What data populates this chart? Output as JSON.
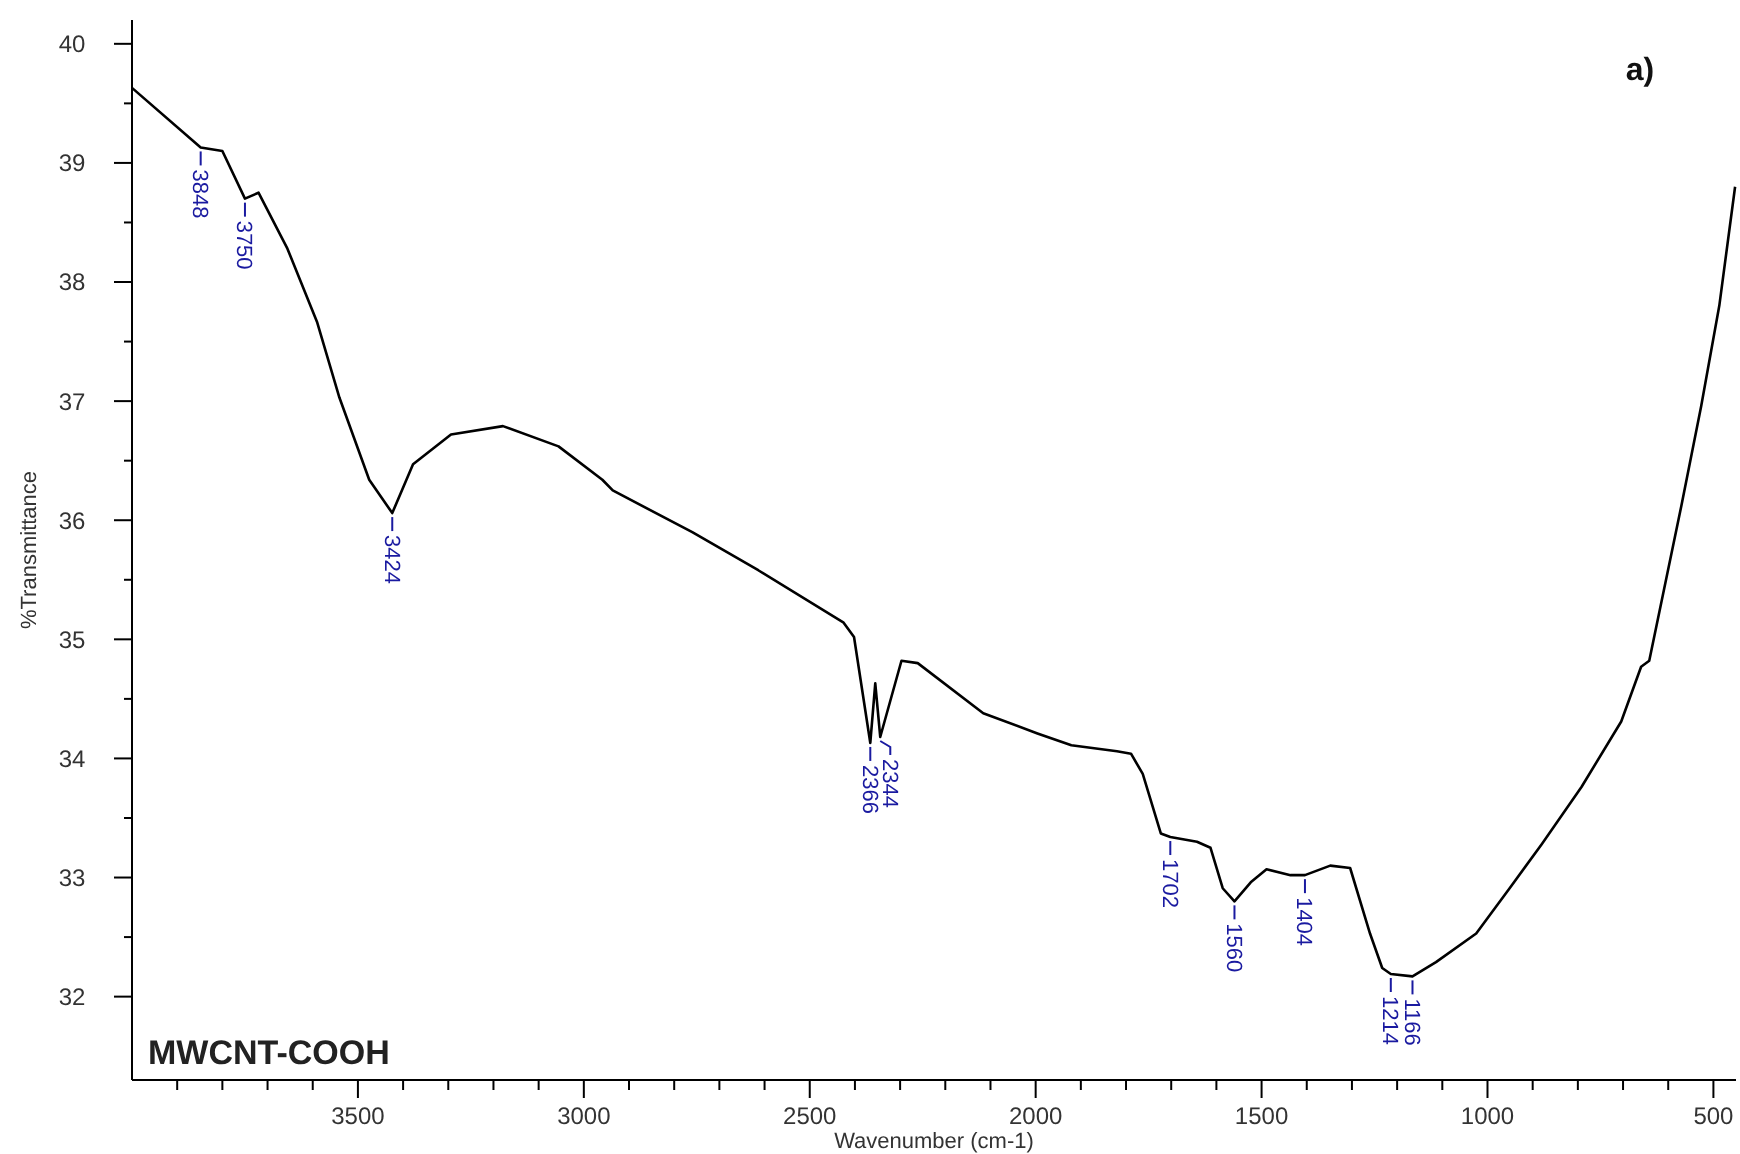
{
  "chart_data": {
    "type": "line",
    "title": "a)",
    "xlabel": "Wavenumber (cm-1)",
    "ylabel": "%Transmittance",
    "xlim": [
      4000,
      450
    ],
    "ylim": [
      31.3,
      40.2
    ],
    "xticks": [
      {
        "value": 3900,
        "label": null
      },
      {
        "value": 3800,
        "label": null
      },
      {
        "value": 3700,
        "label": null
      },
      {
        "value": 3600,
        "label": null
      },
      3500,
      {
        "value": 3400,
        "label": null
      },
      {
        "value": 3300,
        "label": null
      },
      {
        "value": 3200,
        "label": null
      },
      {
        "value": 3100,
        "label": null
      },
      3000,
      {
        "value": 2900,
        "label": null
      },
      {
        "value": 2800,
        "label": null
      },
      {
        "value": 2700,
        "label": null
      },
      {
        "value": 2600,
        "label": null
      },
      2500,
      {
        "value": 2400,
        "label": null
      },
      {
        "value": 2300,
        "label": null
      },
      {
        "value": 2200,
        "label": null
      },
      {
        "value": 2100,
        "label": null
      },
      2000,
      {
        "value": 1900,
        "label": null
      },
      {
        "value": 1800,
        "label": null
      },
      {
        "value": 1700,
        "label": null
      },
      {
        "value": 1600,
        "label": null
      },
      1500,
      {
        "value": 1400,
        "label": null
      },
      {
        "value": 1300,
        "label": null
      },
      {
        "value": 1200,
        "label": null
      },
      {
        "value": 1100,
        "label": null
      },
      1000,
      {
        "value": 900,
        "label": null
      },
      {
        "value": 800,
        "label": null
      },
      {
        "value": 700,
        "label": null
      },
      {
        "value": 600,
        "label": null
      },
      500
    ],
    "yticks": [
      32,
      {
        "value": 32.5,
        "label": null
      },
      33,
      {
        "value": 33.5,
        "label": null
      },
      34,
      {
        "value": 34.5,
        "label": null
      },
      35,
      {
        "value": 35.5,
        "label": null
      },
      36,
      {
        "value": 36.5,
        "label": null
      },
      37,
      {
        "value": 37.5,
        "label": null
      },
      38,
      {
        "value": 38.5,
        "label": null
      },
      39,
      {
        "value": 39.5,
        "label": null
      },
      40
    ],
    "grid": false,
    "marker": "none",
    "line_style": "solid",
    "series": [
      {
        "color": "#000000",
        "x": [
          4000,
          3848,
          3800,
          3750,
          3720,
          3656,
          3590,
          3541,
          3475,
          3424,
          3378,
          3294,
          3179,
          3056,
          2959,
          2936,
          2760,
          2614,
          2425,
          2402,
          2366,
          2355,
          2344,
          2297,
          2261,
          2116,
          1996,
          1921,
          1820,
          1789,
          1763,
          1723,
          1702,
          1643,
          1613,
          1586,
          1560,
          1524,
          1489,
          1436,
          1404,
          1348,
          1304,
          1260,
          1233,
          1214,
          1166,
          1114,
          1025,
          951,
          880,
          792,
          704,
          660,
          642,
          571,
          527,
          487,
          452
        ],
        "values": [
          39.63,
          39.13,
          39.1,
          38.7,
          38.75,
          38.28,
          37.66,
          37.03,
          36.34,
          36.06,
          36.47,
          36.72,
          36.79,
          36.62,
          36.34,
          36.25,
          35.9,
          35.58,
          35.14,
          35.02,
          34.13,
          34.63,
          34.18,
          34.82,
          34.8,
          34.38,
          34.21,
          34.11,
          34.06,
          34.04,
          33.87,
          33.37,
          33.34,
          33.3,
          33.25,
          32.91,
          32.8,
          32.96,
          33.07,
          33.02,
          33.02,
          33.1,
          33.08,
          32.53,
          32.24,
          32.19,
          32.17,
          32.29,
          32.53,
          32.91,
          33.28,
          33.76,
          34.31,
          34.77,
          34.82,
          36.12,
          36.96,
          37.8,
          38.8
        ]
      }
    ],
    "annotations": [
      "MWCNT-COOH",
      {
        "text": "3848",
        "x": 3848,
        "y": 39.13
      },
      {
        "text": "3750",
        "x": 3750,
        "y": 38.7
      },
      {
        "text": "3424",
        "x": 3424,
        "y": 36.06
      },
      {
        "text": "2366",
        "x": 2366,
        "y": 34.13
      },
      {
        "text": "2344",
        "x": 2344,
        "y": 34.18
      },
      {
        "text": "1702",
        "x": 1702,
        "y": 33.34
      },
      {
        "text": "1560",
        "x": 1560,
        "y": 32.8
      },
      {
        "text": "1404",
        "x": 1404,
        "y": 33.02
      },
      {
        "text": "1214",
        "x": 1214,
        "y": 32.19
      },
      {
        "text": "1166",
        "x": 1166,
        "y": 32.17
      }
    ]
  }
}
